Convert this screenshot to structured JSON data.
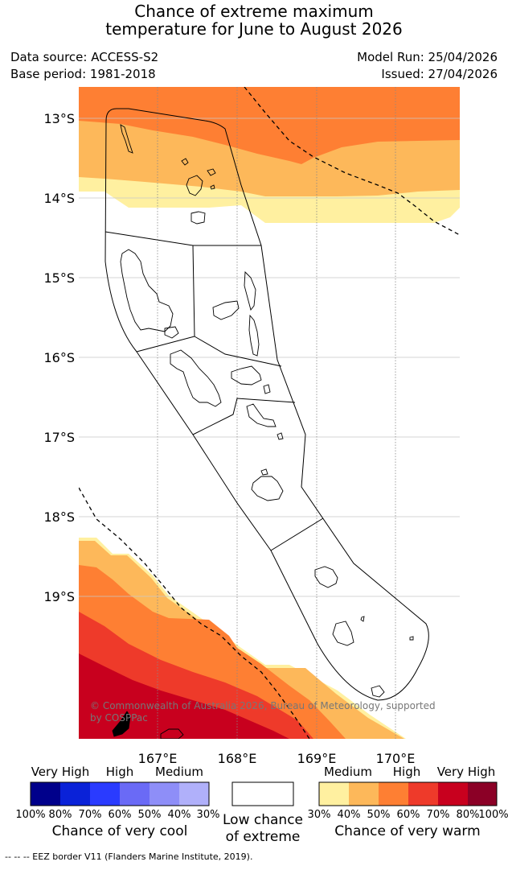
{
  "title_line1": "Chance of extreme maximum",
  "title_line2": "temperature for June to August 2026",
  "data_source": "Data source: ACCESS-S2",
  "base_period": "Base period: 1981-2018",
  "model_run": "Model Run: 25/04/2026",
  "issued": "Issued: 27/04/2026",
  "lat_labels": [
    "13°S",
    "14°S",
    "15°S",
    "16°S",
    "17°S",
    "18°S",
    "19°S"
  ],
  "lon_labels": [
    "167°E",
    "168°E",
    "169°E",
    "170°E"
  ],
  "copyright_line1": "© Commonwealth of Australia 2026, Bureau of Meteorology, supported",
  "copyright_line2": "by COSPPac",
  "legend": {
    "cool": {
      "categories": [
        "Very High",
        "High",
        "Medium"
      ],
      "ticks": [
        "100%",
        "80%",
        "70%",
        "60%",
        "50%",
        "40%",
        "30%"
      ],
      "caption": "Chance of very cool",
      "colors": [
        "#00008b",
        "#0a22d8",
        "#2a3bff",
        "#6a6af6",
        "#8e8ef8",
        "#b0b0fa"
      ]
    },
    "low": {
      "caption_line1": "Low chance",
      "caption_line2": "of extreme"
    },
    "warm": {
      "categories": [
        "Medium",
        "High",
        "Very High"
      ],
      "ticks": [
        "30%",
        "40%",
        "50%",
        "60%",
        "70%",
        "80%",
        "100%"
      ],
      "caption": "Chance of very warm",
      "colors": [
        "#fff0a0",
        "#fdb85a",
        "#fe7f33",
        "#ee3a2a",
        "#c8001e",
        "#8b0026"
      ]
    }
  },
  "footer": "--  --  -- EEZ border V11 (Flanders Marine Institute, 2019)."
}
